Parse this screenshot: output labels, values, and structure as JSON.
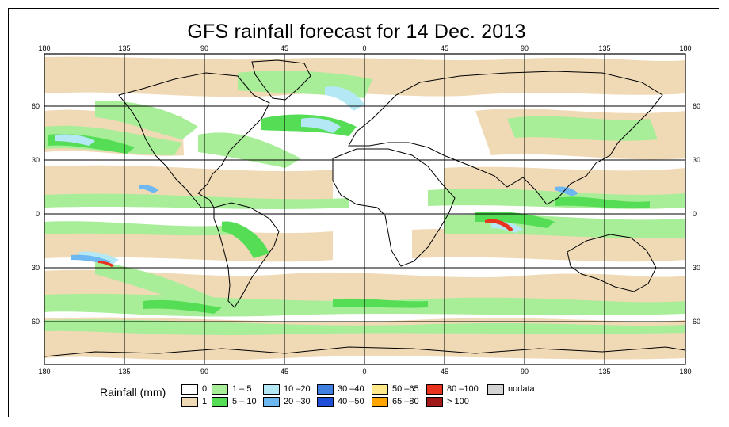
{
  "title": "GFS rainfall forecast for 14 Dec. 2013",
  "axes": {
    "lon_ticks": [
      "180",
      "135",
      "90",
      "45",
      "0",
      "45",
      "90",
      "135",
      "180"
    ],
    "lat_ticks": [
      "60",
      "30",
      "0",
      "30",
      "60"
    ]
  },
  "legend": {
    "label": "Rainfall (mm)",
    "items": [
      {
        "label": "0",
        "color": "#ffffff"
      },
      {
        "label": "1",
        "color": "#f0d9b5"
      },
      {
        "label": "1 – 5",
        "color": "#a8ee98"
      },
      {
        "label": "5 – 10",
        "color": "#55dd55"
      },
      {
        "label": "10 –20",
        "color": "#b5e8f5"
      },
      {
        "label": "20 –30",
        "color": "#6db8f0"
      },
      {
        "label": "30 –40",
        "color": "#3f7fe0"
      },
      {
        "label": "40 –50",
        "color": "#1f4fd8"
      },
      {
        "label": "50 –65",
        "color": "#ffe98a"
      },
      {
        "label": "65 –80",
        "color": "#ffa500"
      },
      {
        "label": "80 –100",
        "color": "#e8321e"
      },
      {
        "label": "> 100",
        "color": "#a01818"
      },
      {
        "label": "nodata",
        "color": "#d3d3d3"
      }
    ]
  },
  "colors": {
    "ocean": "#ffffff",
    "sand": "#f0d9b5",
    "light_green": "#a8ee98",
    "green": "#55dd55",
    "light_blue": "#b5e8f5",
    "blue": "#6db8f0",
    "red": "#e8321e",
    "coast": "#000000",
    "grid": "#000000"
  }
}
